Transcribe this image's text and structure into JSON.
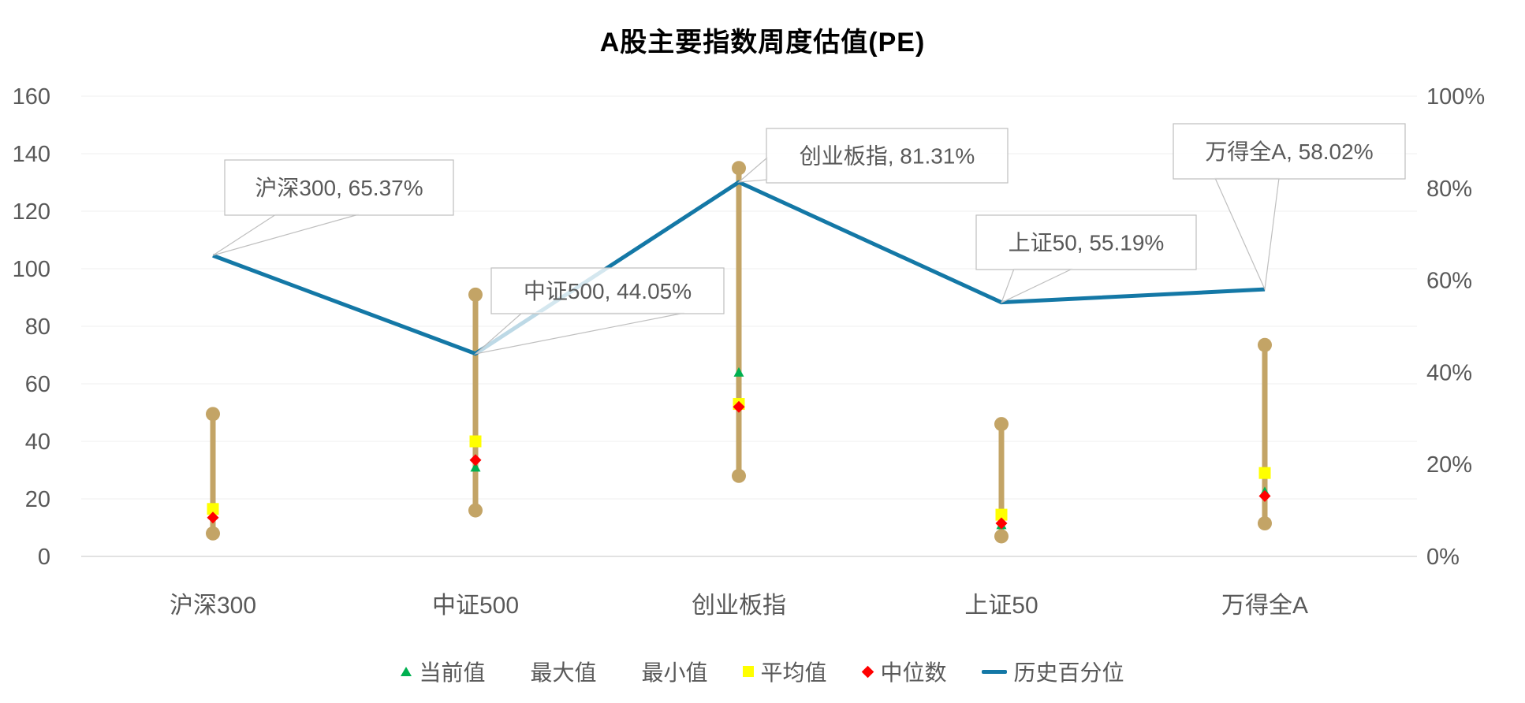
{
  "title": "A股主要指数周度估值(PE)",
  "chart_data": {
    "type": "line",
    "subtype": "high-low range bars with value markers plus percentile line on secondary axis",
    "categories": [
      "沪深300",
      "中证500",
      "创业板指",
      "上证50",
      "万得全A"
    ],
    "series": [
      {
        "name": "当前值",
        "marker": "triangle",
        "color": "#00B050",
        "axis": "left",
        "values": [
          14.5,
          31,
          64,
          11,
          22.5
        ]
      },
      {
        "name": "最大值",
        "marker": "none",
        "color": "#C3A466",
        "axis": "left",
        "values": [
          49.5,
          91,
          135,
          46,
          73.5
        ]
      },
      {
        "name": "最小值",
        "marker": "none",
        "color": "#C3A466",
        "axis": "left",
        "values": [
          8,
          16,
          28,
          7,
          11.5
        ]
      },
      {
        "name": "平均值",
        "marker": "square",
        "color": "#FFFF00",
        "axis": "left",
        "values": [
          16.5,
          40,
          53,
          14.5,
          29
        ]
      },
      {
        "name": "中位数",
        "marker": "diamond",
        "color": "#FF0000",
        "axis": "left",
        "values": [
          13.5,
          33.5,
          52,
          11.5,
          21
        ]
      },
      {
        "name": "历史百分位",
        "marker": "line",
        "color": "#1478A6",
        "axis": "right",
        "values": [
          65.37,
          44.05,
          81.31,
          55.19,
          58.02
        ]
      }
    ],
    "data_labels": [
      "沪深300, 65.37%",
      "中证500, 44.05%",
      "创业板指, 81.31%",
      "上证50, 55.19%",
      "万得全A, 58.02%"
    ],
    "left_axis": {
      "min": 0,
      "max": 160,
      "step": 20
    },
    "right_axis": {
      "min": 0,
      "max": 100,
      "step": 20,
      "format": "percent"
    },
    "grid": true,
    "legend_position": "bottom"
  },
  "legend": {
    "items": [
      {
        "label": "当前值",
        "marker": "triangle",
        "color": "#00B050"
      },
      {
        "label": "最大值",
        "marker": "none",
        "color": "#C3A466"
      },
      {
        "label": "最小值",
        "marker": "none",
        "color": "#C3A466"
      },
      {
        "label": "平均值",
        "marker": "square",
        "color": "#FFFF00"
      },
      {
        "label": "中位数",
        "marker": "diamond",
        "color": "#FF0000"
      },
      {
        "label": "历史百分位",
        "marker": "line",
        "color": "#1478A6"
      }
    ]
  },
  "colors": {
    "bar": "#C3A466",
    "percentile_line": "#1478A6",
    "grid": "#EFEFEF",
    "axis_line": "#D9D9D9",
    "axis_text": "#595959",
    "callout_border": "#BFBFBF",
    "title_text": "#000000"
  }
}
